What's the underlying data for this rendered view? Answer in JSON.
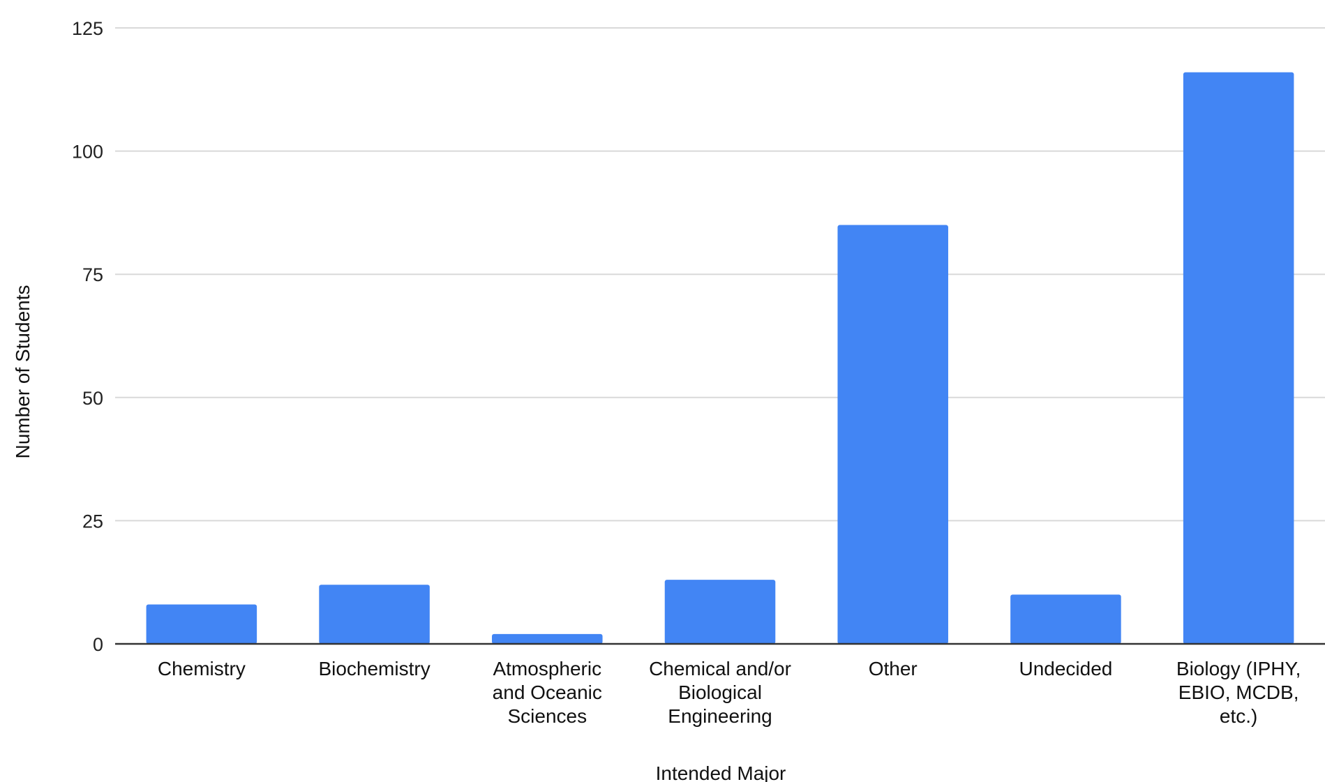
{
  "chart_data": {
    "type": "bar",
    "title": "",
    "xlabel": "Intended Major",
    "ylabel": "Number of Students",
    "categories": [
      [
        "Chemistry"
      ],
      [
        "Biochemistry"
      ],
      [
        "Atmospheric",
        "and Oceanic",
        "Sciences"
      ],
      [
        "Chemical and/or",
        "Biological",
        "Engineering"
      ],
      [
        "Other"
      ],
      [
        "Undecided"
      ],
      [
        "Biology (IPHY,",
        "EBIO, MCDB,",
        "etc.)"
      ]
    ],
    "series": [
      {
        "values": [
          8,
          12,
          2,
          13,
          85,
          10,
          116
        ]
      }
    ],
    "ylim": [
      0,
      125
    ],
    "yticks": [
      0,
      25,
      50,
      75,
      100,
      125
    ],
    "grid": true,
    "legend": "none",
    "colors": {
      "bar": "#4285f4",
      "grid": "#d9d9d9",
      "axis": "#333333"
    }
  }
}
